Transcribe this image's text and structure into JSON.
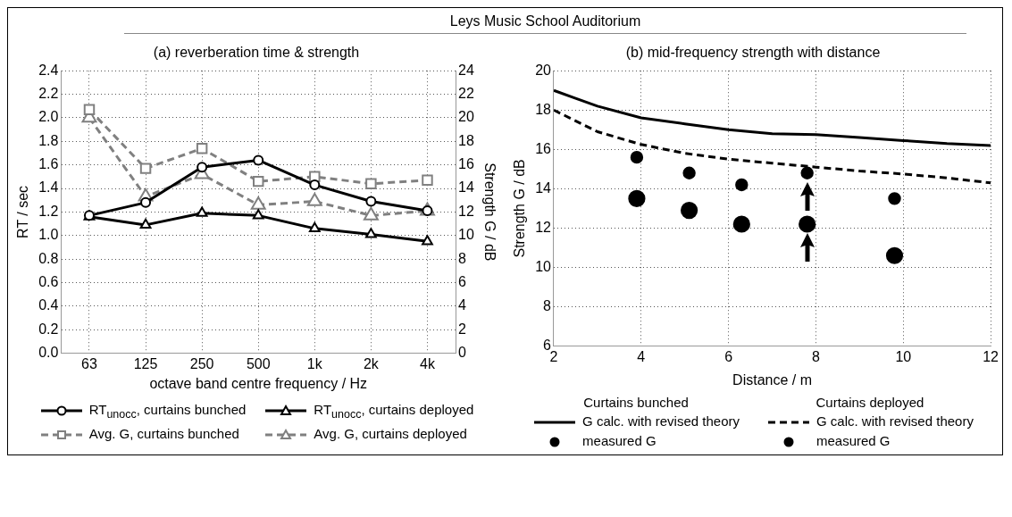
{
  "chart_data": [
    {
      "type": "line",
      "title": "(a) reverberation time & strength",
      "xlabel": "octave band centre frequency / Hz",
      "ylabel": "RT / sec",
      "y2label": "Strength G / dB",
      "annotations": [
        "Leys Music School Auditorium"
      ],
      "categories": [
        "63",
        "125",
        "250",
        "500",
        "1k",
        "2k",
        "4k"
      ],
      "ylim": [
        0,
        2.4
      ],
      "yticks": [
        {
          "value": 0,
          "label": "0.0"
        },
        {
          "value": 0.2,
          "label": "0.2"
        },
        {
          "value": 0.4,
          "label": "0.4"
        },
        {
          "value": 0.6,
          "label": "0.6"
        },
        {
          "value": 0.8,
          "label": "0.8"
        },
        {
          "value": 1,
          "label": "1.0"
        },
        {
          "value": 1.2,
          "label": "1.2"
        },
        {
          "value": 1.4,
          "label": "1.4"
        },
        {
          "value": 1.6,
          "label": "1.6"
        },
        {
          "value": 1.8,
          "label": "1.8"
        },
        {
          "value": 2,
          "label": "2.0"
        },
        {
          "value": 2.2,
          "label": "2.2"
        },
        {
          "value": 2.4,
          "label": "2.4"
        }
      ],
      "y2lim": [
        0,
        24
      ],
      "y2ticks": [
        0,
        2,
        4,
        6,
        8,
        10,
        12,
        14,
        16,
        18,
        20,
        22,
        24
      ],
      "grid": true,
      "legend": "bottom",
      "series": [
        {
          "name": "RT$_{unocc}$, curtains bunched",
          "color": "#000000",
          "marker": "circle",
          "line_style": "solid",
          "axis": "y",
          "values": [
            1.17,
            1.28,
            1.58,
            1.64,
            1.43,
            1.29,
            1.21
          ]
        },
        {
          "name": "RT$_{unocc}$, curtains deployed",
          "color": "#000000",
          "marker": "triangle",
          "line_style": "solid",
          "axis": "y",
          "values": [
            1.16,
            1.09,
            1.19,
            1.17,
            1.06,
            1.01,
            0.95
          ]
        },
        {
          "name": "Avg. G, curtains bunched",
          "color": "#808080",
          "marker": "square",
          "line_style": "dashed",
          "axis": "y2",
          "values": [
            20.7,
            15.7,
            17.4,
            14.6,
            15.0,
            14.4,
            14.7
          ]
        },
        {
          "name": "Avg. G, curtains deployed",
          "color": "#808080",
          "marker": "triangle",
          "line_style": "dashed",
          "axis": "y2",
          "values": [
            20.0,
            13.3,
            15.2,
            12.6,
            12.9,
            11.7,
            12.1
          ]
        }
      ]
    },
    {
      "type": "line",
      "title": "(b) mid-frequency strength with distance",
      "xlabel": "Distance / m",
      "ylabel": "Strength G / dB",
      "annotations": [
        "Curtains bunched",
        "Curtains deployed"
      ],
      "xlim": [
        2,
        12
      ],
      "xticks": [
        2,
        4,
        6,
        8,
        10,
        12
      ],
      "ylim": [
        6,
        20
      ],
      "yticks": [
        6,
        8,
        10,
        12,
        14,
        16,
        18,
        20
      ],
      "grid": true,
      "legend": "bottom",
      "series": [
        {
          "name": "G calc. with revised theory",
          "type": "line",
          "color": "#000000",
          "marker": "none",
          "line_style": "solid",
          "x": [
            2,
            2.5,
            3,
            4,
            5,
            6,
            7,
            8,
            9,
            10,
            11,
            12
          ],
          "values": [
            19.0,
            18.6,
            18.2,
            17.6,
            17.3,
            17.0,
            16.8,
            16.75,
            16.6,
            16.45,
            16.3,
            16.2
          ]
        },
        {
          "name": "measured G",
          "type": "scatter",
          "color": "#000000",
          "marker": "circle",
          "x": [
            3.9,
            5.1,
            6.3,
            7.8,
            9.8
          ],
          "values": [
            15.6,
            14.8,
            14.2,
            14.8,
            13.5
          ]
        },
        {
          "name": "G calc. with revised theory",
          "type": "line",
          "color": "#000000",
          "marker": "none",
          "line_style": "dashed",
          "x": [
            2,
            3,
            4,
            5,
            6,
            7,
            8,
            9,
            10,
            11,
            12
          ],
          "values": [
            18.0,
            16.9,
            16.25,
            15.8,
            15.5,
            15.3,
            15.1,
            14.9,
            14.75,
            14.55,
            14.3
          ]
        },
        {
          "name": "measured G",
          "type": "scatter",
          "color": "#000000",
          "marker": "circle",
          "x": [
            3.9,
            5.1,
            6.3,
            7.8,
            9.8
          ],
          "values": [
            13.5,
            12.9,
            12.2,
            12.2,
            10.6
          ]
        }
      ]
    }
  ]
}
